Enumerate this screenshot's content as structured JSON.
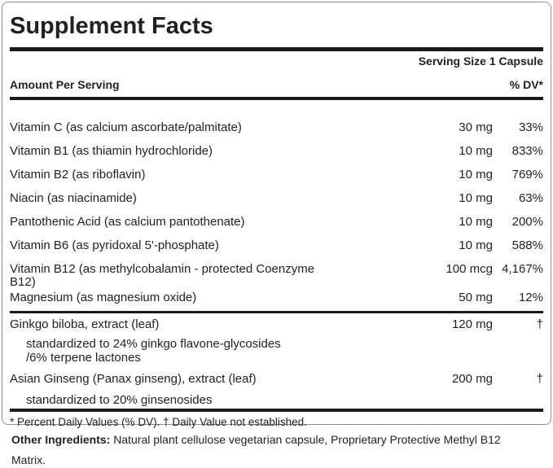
{
  "panel": {
    "title": "Supplement Facts",
    "serving_size": "Serving Size 1 Capsule",
    "columns": {
      "amount": "Amount Per Serving",
      "dv": "% DV*"
    }
  },
  "nutrients": [
    {
      "name": "Vitamin C (as calcium ascorbate/palmitate)",
      "amount": "30 mg",
      "dv": "33%"
    },
    {
      "name": "Vitamin B1 (as thiamin hydrochloride)",
      "amount": "10 mg",
      "dv": "833%"
    },
    {
      "name": "Vitamin B2 (as riboflavin)",
      "amount": "10 mg",
      "dv": "769%"
    },
    {
      "name": "Niacin (as niacinamide)",
      "amount": "10 mg",
      "dv": "63%"
    },
    {
      "name": "Pantothenic Acid (as calcium pantothenate)",
      "amount": "10 mg",
      "dv": "200%"
    },
    {
      "name": "Vitamin B6 (as pyridoxal 5'-phosphate)",
      "amount": "10 mg",
      "dv": "588%"
    },
    {
      "name": "Vitamin B12 (as methylcobalamin - protected Coenzyme\nB12)",
      "amount": "100 mcg",
      "dv": "4,167%"
    },
    {
      "name": "Magnesium (as magnesium oxide)",
      "amount": "50 mg",
      "dv": "12%"
    }
  ],
  "botanicals": [
    {
      "name": "Ginkgo biloba, extract (leaf)",
      "amount": "120 mg",
      "dv": "†",
      "notes": [
        "standardized to 24% ginkgo flavone-glycosides",
        "/6% terpene lactones"
      ]
    },
    {
      "name": "Asian Ginseng (Panax ginseng), extract (leaf)",
      "amount": "200 mg",
      "dv": "†",
      "notes": [
        "standardized to 20% ginsenosides"
      ]
    }
  ],
  "footnote": "* Percent Daily Values (% DV). † Daily Value not established.",
  "other_ingredients": {
    "label": "Other Ingredients:",
    "text": " Natural plant cellulose vegetarian capsule, Proprietary Protective Methyl B12 Matrix."
  },
  "colors": {
    "ink": "#231f20",
    "rule": "#1b1b1b",
    "panel_border": "#8f8f8f",
    "background": "#ffffff"
  }
}
